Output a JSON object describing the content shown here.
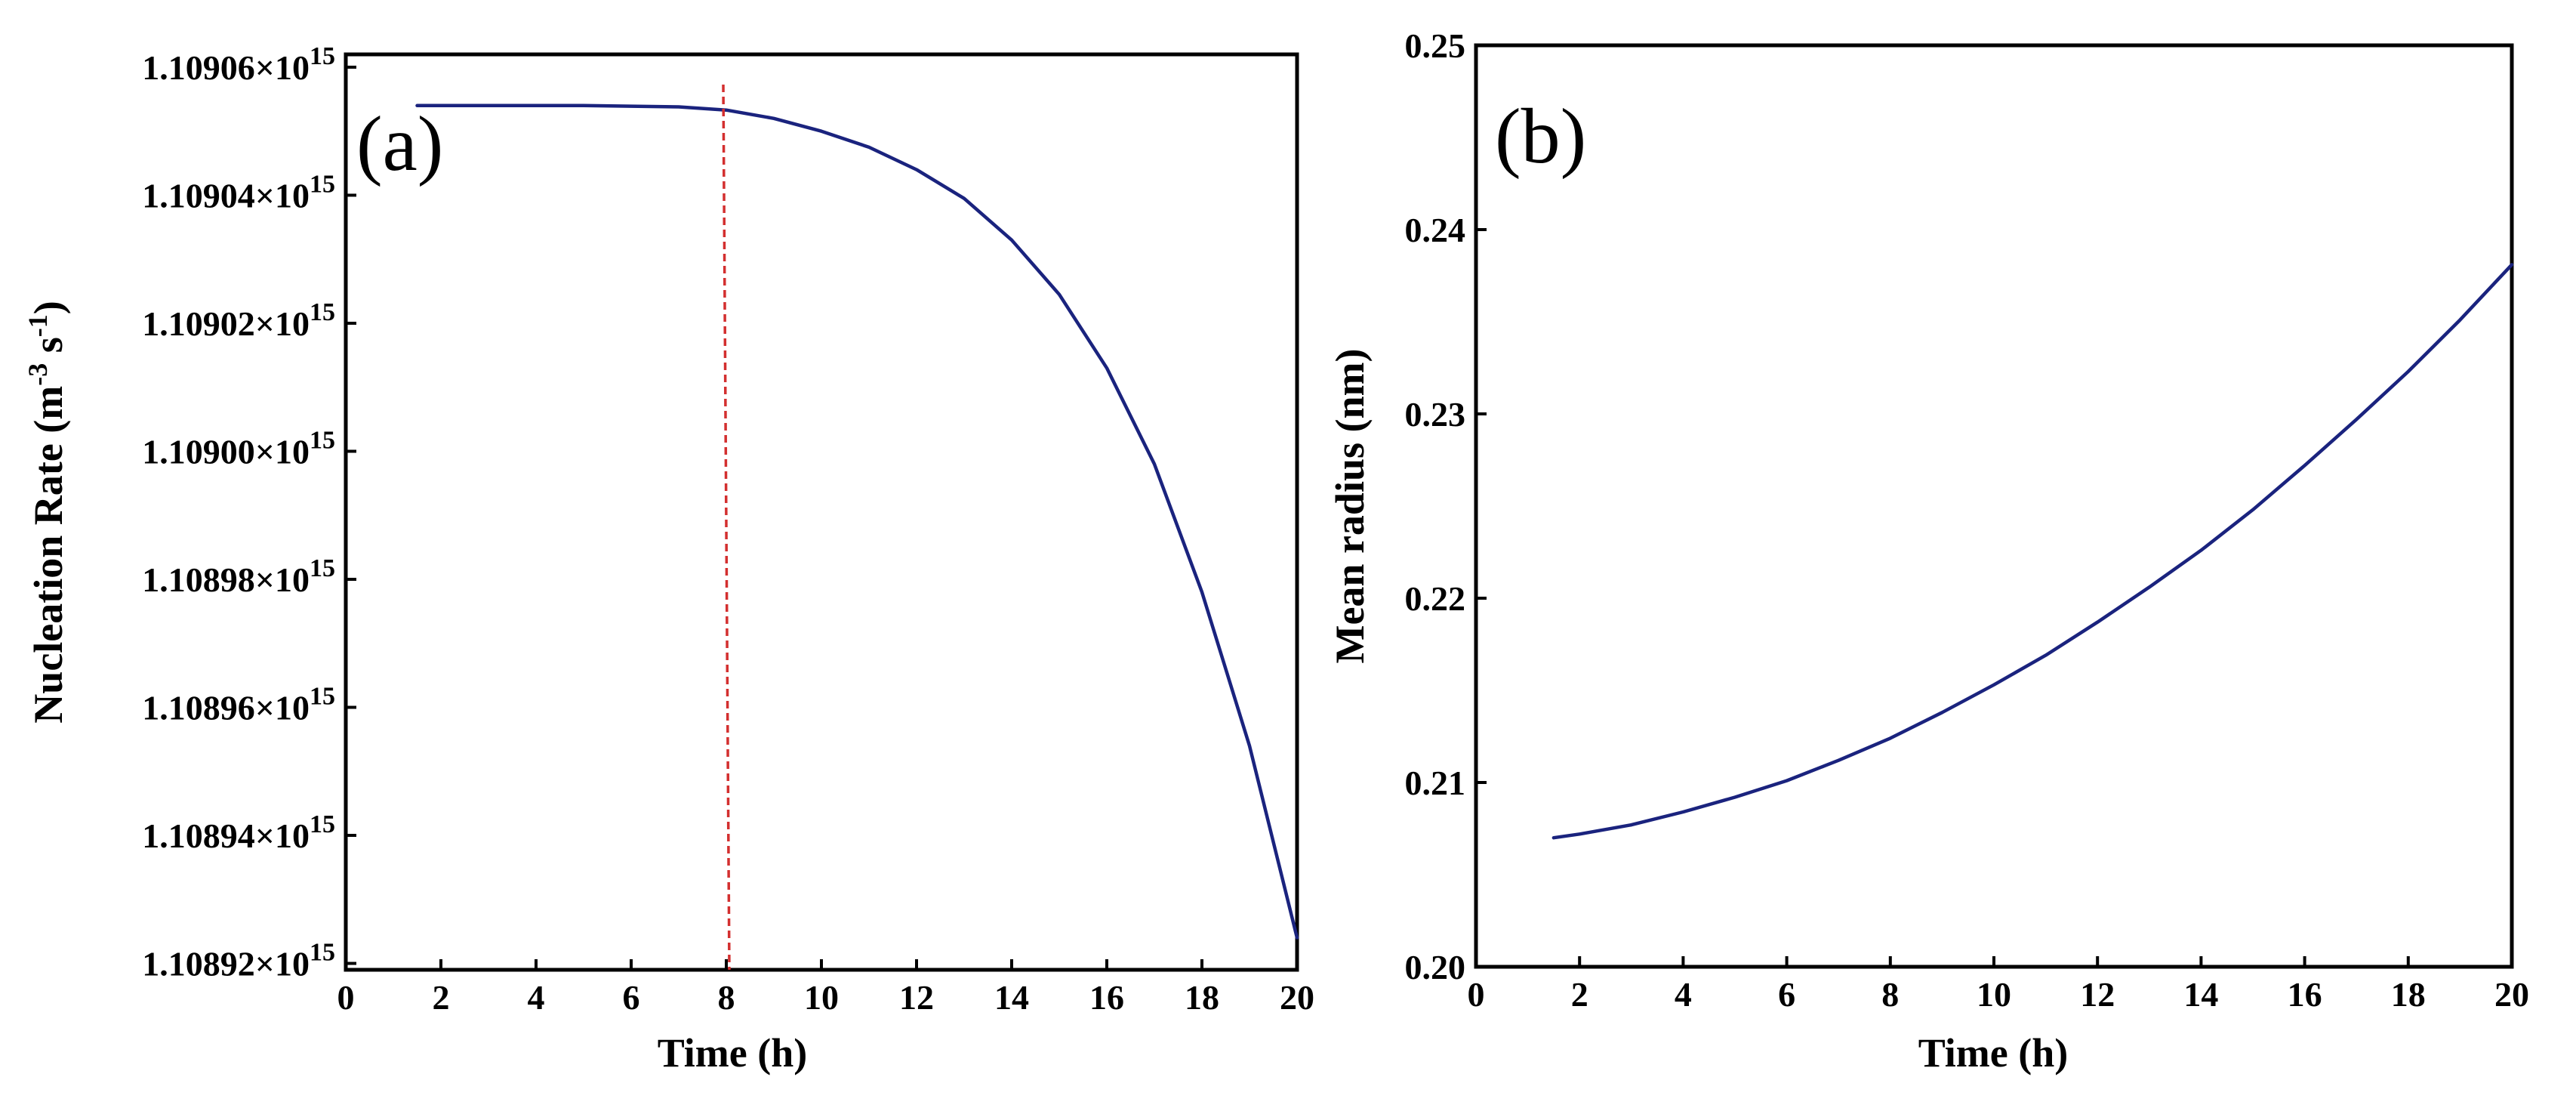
{
  "chart_data": [
    {
      "type": "line",
      "panel_label": "(a)",
      "xlabel": "Time (h)",
      "ylabel": "Nucleation Rate (m⁻³ s⁻¹)",
      "ylabel_parts": {
        "main": "Nucleation Rate (m",
        "sup1": "-3",
        "mid": " s",
        "sup2": "-1",
        "end": ")"
      },
      "xlim": [
        0,
        20
      ],
      "ylim": [
        1.108919,
        1.109062
      ],
      "y_multiplier_text": "×10",
      "y_exponent": "15",
      "xticks": [
        0,
        2,
        4,
        6,
        8,
        10,
        12,
        14,
        16,
        18,
        20
      ],
      "xtick_labels": [
        "0",
        "2",
        "4",
        "6",
        "8",
        "10",
        "12",
        "14",
        "16",
        "18",
        "20"
      ],
      "yticks": [
        1.10892,
        1.10894,
        1.10896,
        1.10898,
        1.109,
        1.10902,
        1.10904,
        1.10906
      ],
      "ytick_labels": [
        "1.10892",
        "1.10894",
        "1.10896",
        "1.10898",
        "1.10900",
        "1.10902",
        "1.10904",
        "1.10906"
      ],
      "series": [
        {
          "name": "nucleation-rate",
          "color": "#1a237e",
          "x": [
            1.5,
            3,
            5,
            7,
            8,
            9,
            10,
            11,
            12,
            13,
            14,
            15,
            16,
            17,
            18,
            19,
            20
          ],
          "y": [
            1.109054,
            1.109054,
            1.109054,
            1.1090538,
            1.1090533,
            1.109052,
            1.10905,
            1.1090475,
            1.109044,
            1.1090395,
            1.109033,
            1.1090245,
            1.109013,
            1.108998,
            1.108978,
            1.108954,
            1.108924
          ]
        }
      ],
      "vline": {
        "x": 8,
        "color": "#d32f2f",
        "style": "dashed"
      }
    },
    {
      "type": "line",
      "panel_label": "(b)",
      "xlabel": "Time (h)",
      "ylabel": "Mean radius (nm)",
      "xlim": [
        0,
        20
      ],
      "ylim": [
        0.2,
        0.25
      ],
      "xticks": [
        0,
        2,
        4,
        6,
        8,
        10,
        12,
        14,
        16,
        18,
        20
      ],
      "xtick_labels": [
        "0",
        "2",
        "4",
        "6",
        "8",
        "10",
        "12",
        "14",
        "16",
        "18",
        "20"
      ],
      "yticks": [
        0.2,
        0.21,
        0.22,
        0.23,
        0.24,
        0.25
      ],
      "ytick_labels": [
        "0.20",
        "0.21",
        "0.22",
        "0.23",
        "0.24",
        "0.25"
      ],
      "series": [
        {
          "name": "mean-radius",
          "color": "#1a237e",
          "x": [
            1.5,
            2,
            3,
            4,
            5,
            6,
            7,
            8,
            9,
            10,
            11,
            12,
            13,
            14,
            15,
            16,
            17,
            18,
            19,
            20
          ],
          "y": [
            0.207,
            0.2072,
            0.2077,
            0.2084,
            0.2092,
            0.2101,
            0.2112,
            0.2124,
            0.2138,
            0.2153,
            0.2169,
            0.2187,
            0.2206,
            0.2226,
            0.2248,
            0.2272,
            0.2297,
            0.2323,
            0.2351,
            0.2381
          ]
        }
      ]
    }
  ]
}
